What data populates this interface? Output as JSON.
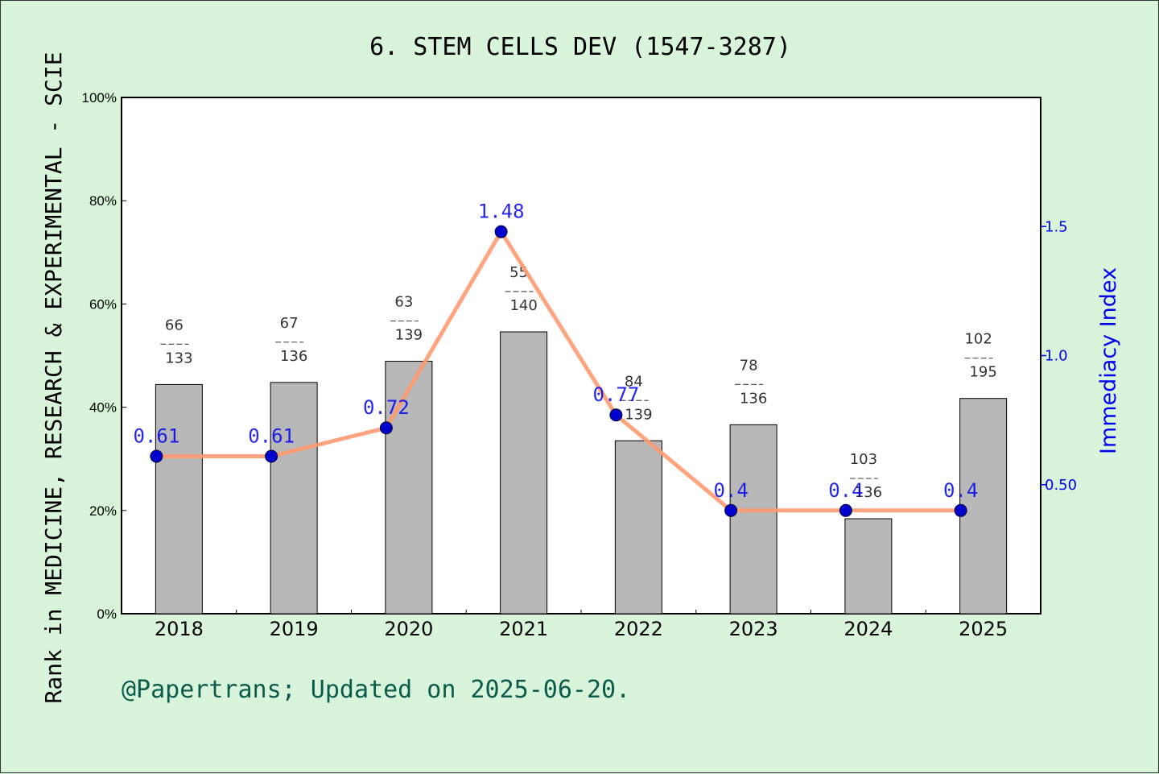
{
  "title": "6. STEM CELLS DEV (1547-3287)",
  "ylabel": "Rank in MEDICINE, RESEARCH & EXPERIMENTAL - SCIE",
  "y2label": "Immediacy Index",
  "footer": "@Papertrans; Updated on 2025-06-20.",
  "colors": {
    "background": "#d8f5dc",
    "bar": "#b8b8b8",
    "line": "#ff9a70",
    "point": "#0000cc",
    "right_axis": "#0000ee"
  },
  "chart_data": {
    "type": "bar",
    "title": "6. STEM CELLS DEV (1547-3287)",
    "categories": [
      "2018",
      "2019",
      "2020",
      "2021",
      "2022",
      "2023",
      "2024",
      "2025"
    ],
    "ylim": [
      0,
      100
    ],
    "yticks": [
      "0%",
      "20%",
      "40%",
      "60%",
      "80%",
      "100%"
    ],
    "y2ticks": [
      "0.50",
      "1.0",
      "1.5"
    ],
    "bars": [
      {
        "year": "2018",
        "rank": "66",
        "total": "133",
        "value": 44.4
      },
      {
        "year": "2019",
        "rank": "67",
        "total": "136",
        "value": 44.8
      },
      {
        "year": "2020",
        "rank": "63",
        "total": "139",
        "value": 48.9
      },
      {
        "year": "2021",
        "rank": "55",
        "total": "140",
        "value": 54.6
      },
      {
        "year": "2022",
        "rank": "84",
        "total": "139",
        "value": 33.5
      },
      {
        "year": "2023",
        "rank": "78",
        "total": "136",
        "value": 36.6
      },
      {
        "year": "2024",
        "rank": "103",
        "total": "136",
        "value": 18.4
      },
      {
        "year": "2025",
        "rank": "102",
        "total": "195",
        "value": 41.7
      }
    ],
    "series": [
      {
        "values": [
          0.61,
          0.61,
          0.72,
          1.48,
          0.77,
          0.4,
          0.4,
          0.4
        ],
        "labels": [
          "0.61",
          "0.61",
          "0.72",
          "1.48",
          "0.77",
          "0.4",
          "0.4",
          "0.4"
        ]
      }
    ],
    "y2lim": [
      0,
      2.0
    ]
  }
}
